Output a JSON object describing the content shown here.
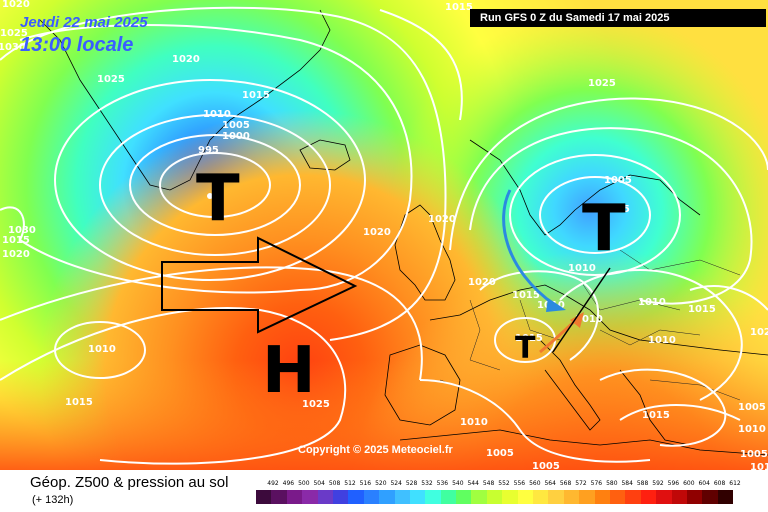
{
  "header": {
    "date_line": "Jeudi 22 mai 2025",
    "time_line": "13:00 locale",
    "run_banner": "Run GFS 0 Z du Samedi 17 mai 2025"
  },
  "footer": {
    "title": "Géop. Z500 & pression au sol",
    "subtitle": "(+ 132h)",
    "copyright": "Copyright © 2025 Meteociel.fr"
  },
  "scale": {
    "labels": [
      "492",
      "496",
      "500",
      "504",
      "508",
      "512",
      "516",
      "520",
      "524",
      "528",
      "532",
      "536",
      "540",
      "544",
      "548",
      "552",
      "556",
      "560",
      "564",
      "568",
      "572",
      "576",
      "580",
      "584",
      "588",
      "592",
      "596",
      "600",
      "604",
      "608",
      "612"
    ],
    "colors": [
      "#3c0a3c",
      "#5a1060",
      "#7a1a8a",
      "#8a2aa8",
      "#6a3ac8",
      "#4040e0",
      "#2060ff",
      "#2a80ff",
      "#30a0ff",
      "#40c0ff",
      "#40e0ff",
      "#40ffe0",
      "#40ffa0",
      "#60ff60",
      "#a0ff40",
      "#c8ff30",
      "#e8ff30",
      "#ffff40",
      "#ffe840",
      "#ffd040",
      "#ffb830",
      "#ffa020",
      "#ff8010",
      "#ff6010",
      "#ff4010",
      "#ff2010",
      "#e01010",
      "#c00808",
      "#900000",
      "#600000",
      "#300000"
    ]
  },
  "centers": [
    {
      "letter": "T",
      "kind": "low",
      "name": "low-north-atlantic"
    },
    {
      "letter": "T",
      "kind": "low",
      "name": "low-scandinavia"
    },
    {
      "letter": "T",
      "kind": "low",
      "name": "low-france"
    },
    {
      "letter": "H",
      "kind": "high",
      "name": "high-azores"
    }
  ],
  "isobar_labels": [
    "1015",
    "1025",
    "1020",
    "1025",
    "995",
    "1010",
    "1005",
    "1000",
    "1015",
    "1025",
    "1005",
    "1020",
    "1020",
    "1030",
    "1010",
    "1015",
    "1025",
    "1020",
    "1015",
    "1010",
    "1010",
    "1015",
    "1010",
    "1015",
    "1010",
    "1015",
    "1010",
    "1005",
    "1005",
    "1010",
    "1005",
    "1020",
    "1015",
    "1005",
    "1030",
    "1025",
    "1020",
    "1005",
    "1010",
    "1015"
  ],
  "colors": {
    "isobar": "#ffffff",
    "coast": "#000000",
    "arrow_blue": "#2b8ae0",
    "arrow_orange": "#f07a30"
  }
}
